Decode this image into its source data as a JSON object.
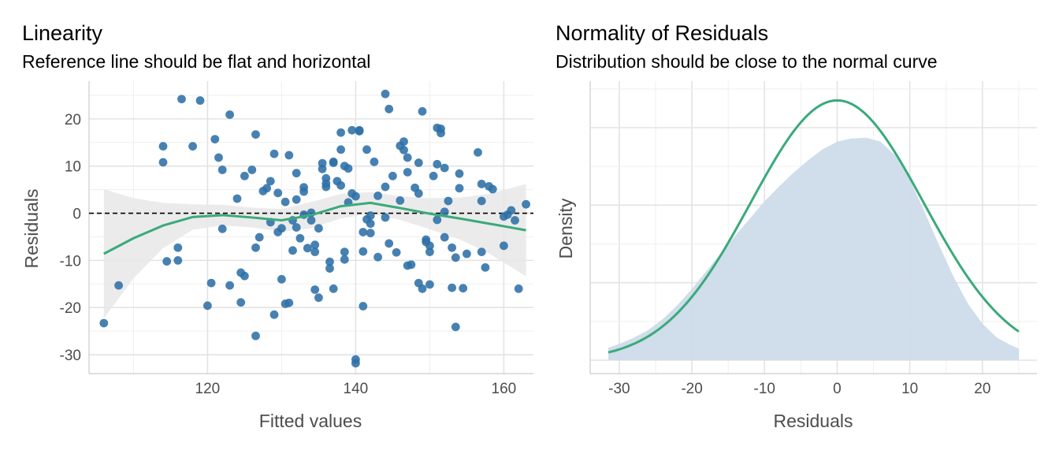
{
  "chart_data": [
    {
      "type": "scatter",
      "title": "Linearity",
      "subtitle": "Reference line should be flat and horizontal",
      "xlabel": "Fitted values",
      "ylabel": "Residuals",
      "xlim": [
        104,
        164
      ],
      "ylim": [
        -34,
        28
      ],
      "x_ticks": [
        120,
        140,
        160
      ],
      "y_ticks": [
        -30,
        -20,
        -10,
        0,
        10,
        20
      ],
      "reference_line": 0,
      "grid": true,
      "colors": {
        "points": "#2e6fa7",
        "smooth": "#3aaa7a",
        "band": "#e8e8e8",
        "reference": "#000000"
      },
      "points": [
        [
          106,
          -23.3
        ],
        [
          108,
          -15.3
        ],
        [
          114,
          14.2
        ],
        [
          114,
          10.8
        ],
        [
          114.5,
          -10.2
        ],
        [
          116,
          -10
        ],
        [
          116,
          -7.3
        ],
        [
          116.5,
          24.2
        ],
        [
          118,
          14.2
        ],
        [
          119,
          23.9
        ],
        [
          120,
          -19.6
        ],
        [
          120.5,
          -14.8
        ],
        [
          121,
          15.7
        ],
        [
          121.5,
          11.8
        ],
        [
          122,
          9.2
        ],
        [
          122,
          -3.3
        ],
        [
          123,
          20.9
        ],
        [
          123,
          -15.3
        ],
        [
          124,
          3.1
        ],
        [
          124.5,
          -12.6
        ],
        [
          124.5,
          -18.9
        ],
        [
          125,
          7.9
        ],
        [
          125,
          -13.3
        ],
        [
          126,
          9.2
        ],
        [
          126.5,
          16.7
        ],
        [
          126.5,
          -26
        ],
        [
          126.5,
          -7.3
        ],
        [
          127,
          -5.1
        ],
        [
          127.5,
          4.7
        ],
        [
          128,
          5.3
        ],
        [
          128.5,
          -1.9
        ],
        [
          128.5,
          6.8
        ],
        [
          129,
          12.6
        ],
        [
          129,
          -21.5
        ],
        [
          129.5,
          -4
        ],
        [
          129.5,
          4.3
        ],
        [
          130,
          -3.2
        ],
        [
          130,
          -14
        ],
        [
          130.5,
          -19.2
        ],
        [
          130.5,
          2.4
        ],
        [
          131,
          12.3
        ],
        [
          131,
          -19
        ],
        [
          131.5,
          -1.5
        ],
        [
          131.5,
          -7.9
        ],
        [
          132,
          8.5
        ],
        [
          132,
          2.9
        ],
        [
          132,
          -3
        ],
        [
          132.5,
          -5.3
        ],
        [
          133,
          5.5
        ],
        [
          133,
          -0.3
        ],
        [
          133,
          4.6
        ],
        [
          133.5,
          -7.4
        ],
        [
          134,
          -1.5
        ],
        [
          134,
          0.1
        ],
        [
          134.5,
          -16.2
        ],
        [
          134.5,
          -8.2
        ],
        [
          134.5,
          -6.7
        ],
        [
          135,
          -17.9
        ],
        [
          135,
          -3.2
        ],
        [
          135.5,
          9.4
        ],
        [
          135.5,
          10.6
        ],
        [
          136,
          5.6
        ],
        [
          136,
          7.4
        ],
        [
          136,
          6.3
        ],
        [
          136.5,
          -10.3
        ],
        [
          136.5,
          -11.7
        ],
        [
          137,
          10.7
        ],
        [
          137,
          10.9
        ],
        [
          137,
          -16
        ],
        [
          137.5,
          6.8
        ],
        [
          138,
          13.5
        ],
        [
          138,
          17.1
        ],
        [
          138,
          5.9
        ],
        [
          138.5,
          -9.8
        ],
        [
          138.5,
          10
        ],
        [
          138.5,
          -8.2
        ],
        [
          139,
          9.5
        ],
        [
          139,
          2.3
        ],
        [
          139.5,
          17.6
        ],
        [
          139.5,
          4.2
        ],
        [
          140,
          -31.8
        ],
        [
          140,
          -31
        ],
        [
          140,
          3.6
        ],
        [
          140.5,
          17.6
        ],
        [
          140.5,
          17.4
        ],
        [
          141,
          -8.1
        ],
        [
          141,
          -19.7
        ],
        [
          141,
          -4
        ],
        [
          141.5,
          13.5
        ],
        [
          141.5,
          -1.3
        ],
        [
          142,
          -4.2
        ],
        [
          142,
          -0.5
        ],
        [
          142,
          -2.2
        ],
        [
          142.5,
          10.9
        ],
        [
          143,
          3.7
        ],
        [
          143,
          -9.3
        ],
        [
          144,
          25.3
        ],
        [
          144,
          5.6
        ],
        [
          144,
          -0.9
        ],
        [
          144.5,
          22.1
        ],
        [
          144.5,
          -6.4
        ],
        [
          145,
          7.9
        ],
        [
          145.5,
          -8.3
        ],
        [
          146,
          14.3
        ],
        [
          146,
          2.7
        ],
        [
          146.5,
          15.2
        ],
        [
          146.5,
          13.4
        ],
        [
          147,
          11.8
        ],
        [
          147,
          -11.1
        ],
        [
          147,
          8.7
        ],
        [
          147.5,
          -10.9
        ],
        [
          148,
          5.4
        ],
        [
          148.5,
          10.7
        ],
        [
          148.5,
          4.2
        ],
        [
          148.5,
          -14.8
        ],
        [
          149,
          21.6
        ],
        [
          149,
          -16
        ],
        [
          149.5,
          -6.1
        ],
        [
          149.5,
          -5.6
        ],
        [
          150,
          -8.2
        ],
        [
          150,
          -15.1
        ],
        [
          150,
          -6.9
        ],
        [
          150.5,
          7.9
        ],
        [
          151,
          18.1
        ],
        [
          151,
          10.4
        ],
        [
          151,
          -1.4
        ],
        [
          151.5,
          17.9
        ],
        [
          151.5,
          17
        ],
        [
          152,
          0.3
        ],
        [
          152,
          -5.1
        ],
        [
          152,
          9.6
        ],
        [
          152.5,
          2.6
        ],
        [
          153,
          -15.8
        ],
        [
          153,
          -7.3
        ],
        [
          153.5,
          -24.1
        ],
        [
          153.5,
          -9.4
        ],
        [
          154,
          8.4
        ],
        [
          154,
          5.3
        ],
        [
          154.5,
          -15.9
        ],
        [
          155,
          -8.6
        ],
        [
          156.5,
          12.9
        ],
        [
          157,
          6.2
        ],
        [
          157,
          2.6
        ],
        [
          157,
          -8.2
        ],
        [
          157.5,
          -11.5
        ],
        [
          158,
          5.7
        ],
        [
          158.5,
          5.1
        ],
        [
          160,
          -6.9
        ],
        [
          160,
          -0.7
        ],
        [
          160.5,
          -0.3
        ],
        [
          161,
          0.6
        ],
        [
          161.5,
          -1.5
        ],
        [
          162,
          -16
        ],
        [
          163,
          1.9
        ]
      ],
      "smooth_x": [
        106,
        110,
        114,
        118,
        122,
        126,
        130,
        134,
        138,
        142,
        146,
        150,
        154,
        158,
        163
      ],
      "smooth_y": [
        -8.6,
        -5.3,
        -2.6,
        -0.8,
        -0.4,
        -0.9,
        -1.5,
        -0.4,
        1.5,
        2.2,
        1.1,
        -0.1,
        -1.1,
        -2.2,
        -3.6
      ],
      "band_upper": [
        5.1,
        3.2,
        2.2,
        1.9,
        1.8,
        1.2,
        0.9,
        2.4,
        4.1,
        4.5,
        3.6,
        3.2,
        3.3,
        4.1,
        6.2
      ],
      "band_lower": [
        -22.3,
        -13.8,
        -7.4,
        -3.5,
        -2.6,
        -3,
        -3.9,
        -3.2,
        -1.1,
        -0.1,
        -1.4,
        -3.4,
        -5.5,
        -8.5,
        -13.4
      ]
    },
    {
      "type": "area",
      "title": "Normality of Residuals",
      "subtitle": "Distribution should be close to the normal curve",
      "xlabel": "Residuals",
      "ylabel": "Density",
      "xlim": [
        -34,
        27.5
      ],
      "ylim": [
        0,
        0.036
      ],
      "x_ticks": [
        -30,
        -20,
        -10,
        0,
        10,
        20
      ],
      "grid": true,
      "colors": {
        "density_fill": "#cddbea",
        "normal_curve": "#3aaa7a"
      },
      "density_x": [
        -31.5,
        -30,
        -28,
        -26,
        -24,
        -22,
        -20,
        -18,
        -16,
        -14,
        -12,
        -10,
        -8,
        -6,
        -4,
        -2,
        0,
        2,
        4,
        6,
        8,
        10,
        12,
        14,
        16,
        18,
        20,
        22,
        24,
        25
      ],
      "density_y": [
        0.0016,
        0.0021,
        0.0029,
        0.0039,
        0.0053,
        0.0071,
        0.0092,
        0.0115,
        0.0138,
        0.0161,
        0.0183,
        0.0205,
        0.0224,
        0.0242,
        0.0258,
        0.0272,
        0.0282,
        0.0286,
        0.0287,
        0.0282,
        0.0264,
        0.0233,
        0.0192,
        0.0149,
        0.0108,
        0.0073,
        0.0047,
        0.0029,
        0.0019,
        0.0015
      ],
      "normal_mean": 0,
      "normal_sd": 11.9,
      "normal_x_range": [
        -31.5,
        25
      ]
    }
  ]
}
